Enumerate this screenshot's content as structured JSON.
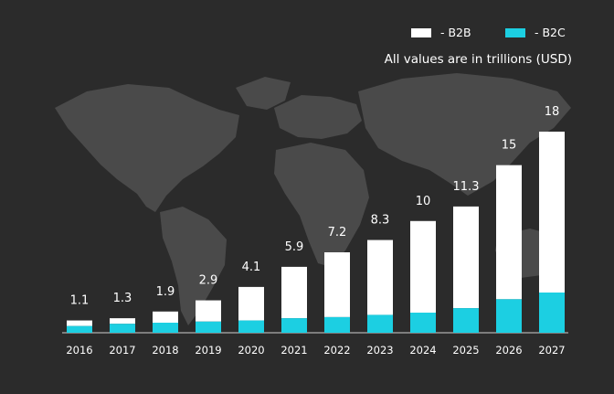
{
  "legend": [
    {
      "label": "- B2B",
      "color": "#ffffff"
    },
    {
      "label": "- B2C",
      "color": "#1ccfe2"
    }
  ],
  "note": "All values are in trillions (USD)",
  "colors": {
    "background": "#2b2b2b",
    "map": "#4a4a4a",
    "axis": "#cfcfcf",
    "text": "#ffffff"
  },
  "chart_data": {
    "type": "bar",
    "stacked": true,
    "categories": [
      "2016",
      "2017",
      "2018",
      "2019",
      "2020",
      "2021",
      "2022",
      "2023",
      "2024",
      "2025",
      "2026",
      "2027"
    ],
    "totals": [
      1.1,
      1.3,
      1.9,
      2.9,
      4.1,
      5.9,
      7.2,
      8.3,
      10,
      11.3,
      15,
      18
    ],
    "total_labels": [
      "1.1",
      "1.3",
      "1.9",
      "2.9",
      "4.1",
      "5.9",
      "7.2",
      "8.3",
      "10",
      "11.3",
      "15",
      "18"
    ],
    "series": [
      {
        "name": "B2C",
        "color": "#1ccfe2",
        "values": [
          0.6,
          0.8,
          0.9,
          1.0,
          1.1,
          1.3,
          1.4,
          1.6,
          1.8,
          2.2,
          3.0,
          3.6
        ]
      },
      {
        "name": "B2B",
        "color": "#ffffff",
        "values": [
          0.5,
          0.5,
          1.0,
          1.9,
          3.0,
          4.6,
          5.8,
          6.7,
          8.2,
          9.1,
          12.0,
          14.4
        ]
      }
    ],
    "legend_position": "top-right",
    "grid": false
  }
}
